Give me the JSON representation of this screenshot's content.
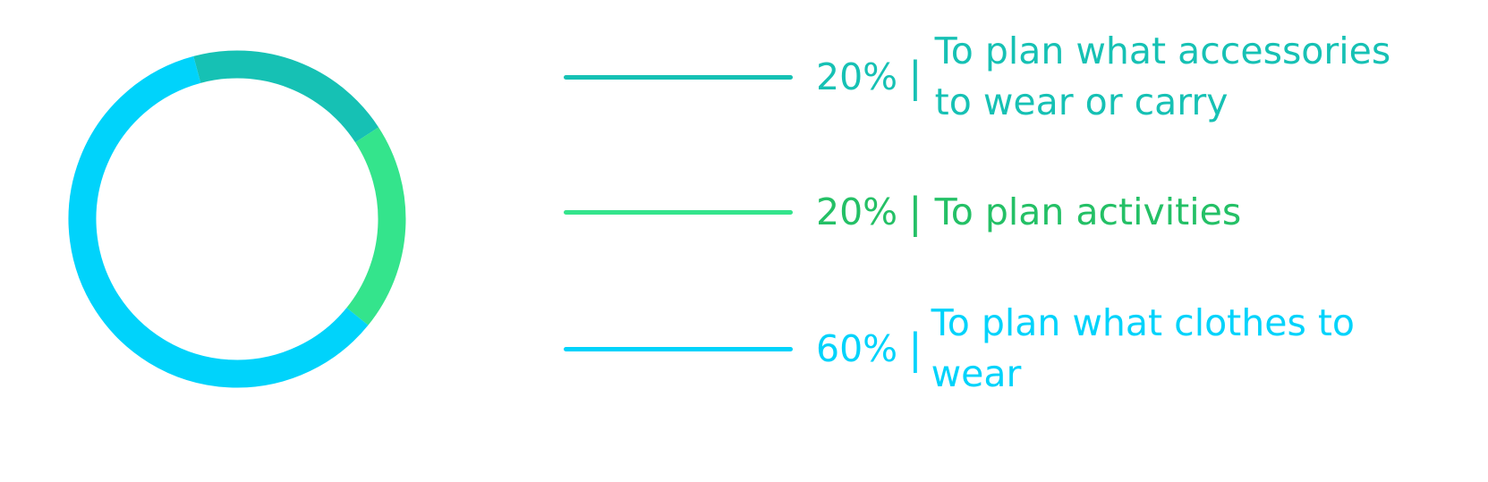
{
  "chart_data": {
    "type": "pie",
    "variant": "donut",
    "title": "",
    "slices": [
      {
        "label": "To plan what accessories to wear or carry",
        "percent_text": "20%",
        "value": 20,
        "color": "#16c1b4"
      },
      {
        "label": "To plan activities",
        "percent_text": "20%",
        "value": 20,
        "color": "#34e48c"
      },
      {
        "label": "To plan what clothes to wear",
        "percent_text": "60%",
        "value": 60,
        "color": "#00d3fb"
      }
    ],
    "separator": "|",
    "legend_position": "right",
    "label_colors": [
      "#16c1b4",
      "#24c066",
      "#00d3fb"
    ]
  }
}
